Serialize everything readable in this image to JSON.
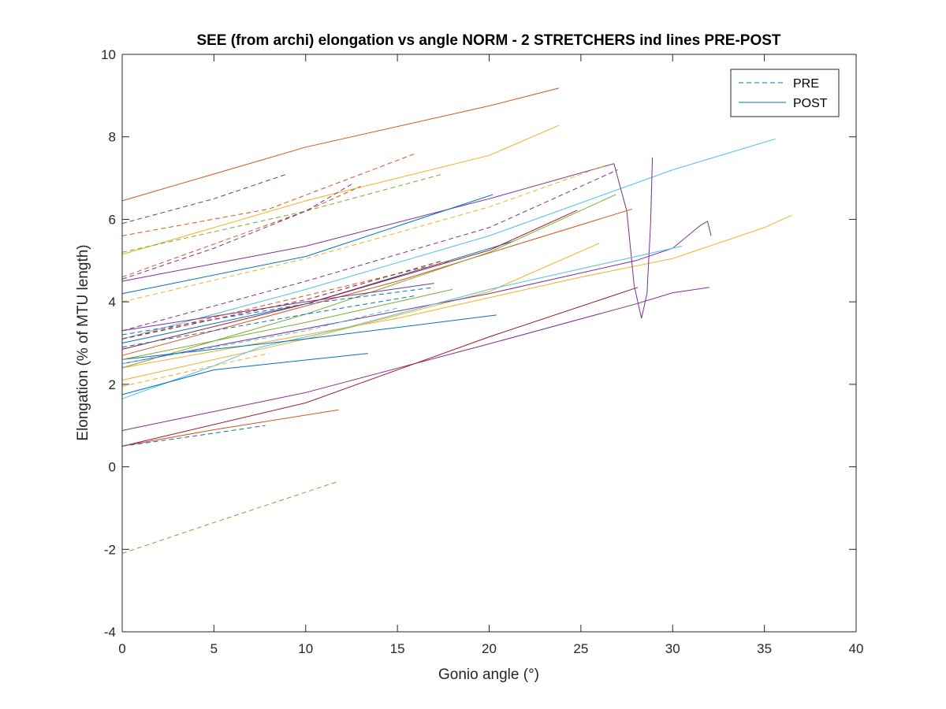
{
  "chart_data": {
    "type": "line",
    "title": "SEE (from archi) elongation vs angle NORM - 2 STRETCHERS ind lines PRE-POST",
    "xlabel": "Gonio angle (°)",
    "ylabel": "Elongation (% of MTU length)",
    "xlim": [
      0,
      40
    ],
    "ylim": [
      -4,
      10
    ],
    "xticks": [
      "0",
      "5",
      "10",
      "15",
      "20",
      "25",
      "30",
      "35",
      "40"
    ],
    "yticks": [
      "-4",
      "-2",
      "0",
      "2",
      "4",
      "6",
      "8",
      "10"
    ],
    "grid": false,
    "legend": {
      "placement": "top-right",
      "entries": [
        {
          "name": "PRE",
          "style": "dashed",
          "color": "#0072BD"
        },
        {
          "name": "POST",
          "style": "solid",
          "color": "#0072BD"
        }
      ]
    },
    "series": [
      {
        "style": "solid",
        "color": "#D95319",
        "points": [
          [
            0,
            6.45
          ],
          [
            10,
            7.75
          ],
          [
            20,
            8.75
          ],
          [
            23.8,
            9.18
          ]
        ]
      },
      {
        "style": "solid",
        "color": "#EDB120",
        "points": [
          [
            0,
            5.15
          ],
          [
            10,
            6.45
          ],
          [
            20,
            7.55
          ],
          [
            23.8,
            8.28
          ]
        ]
      },
      {
        "style": "solid",
        "color": "#4DBEEE",
        "points": [
          [
            0,
            3.1
          ],
          [
            10,
            4.3
          ],
          [
            20,
            5.6
          ],
          [
            30,
            7.2
          ],
          [
            35.6,
            7.95
          ]
        ]
      },
      {
        "style": "solid",
        "color": "#EDB120",
        "points": [
          [
            0,
            2.4
          ],
          [
            15,
            3.6
          ],
          [
            25,
            4.6
          ],
          [
            30,
            5.05
          ],
          [
            35,
            5.8
          ],
          [
            36.5,
            6.1
          ]
        ]
      },
      {
        "style": "solid",
        "color": "#7E2F8E",
        "points": [
          [
            0,
            4.5
          ],
          [
            10,
            5.35
          ],
          [
            20,
            6.5
          ],
          [
            26.8,
            7.35
          ],
          [
            27.5,
            6.2
          ],
          [
            27.9,
            4.4
          ],
          [
            28.3,
            3.6
          ],
          [
            28.6,
            4.2
          ],
          [
            28.8,
            5.9
          ],
          [
            28.9,
            7.5
          ]
        ]
      },
      {
        "style": "solid",
        "color": "#0072BD",
        "points": [
          [
            0,
            4.2
          ],
          [
            10,
            5.1
          ],
          [
            20.2,
            6.6
          ]
        ]
      },
      {
        "style": "solid",
        "color": "#0072BD",
        "points": [
          [
            0,
            3.0
          ],
          [
            10,
            3.95
          ],
          [
            21.4,
            5.48
          ]
        ]
      },
      {
        "style": "solid",
        "color": "#A2142F",
        "points": [
          [
            0,
            2.85
          ],
          [
            10,
            3.95
          ],
          [
            20,
            5.25
          ],
          [
            24.8,
            6.22
          ]
        ]
      },
      {
        "style": "solid",
        "color": "#D95319",
        "points": [
          [
            0,
            2.7
          ],
          [
            15,
            4.5
          ],
          [
            27.8,
            6.25
          ]
        ]
      },
      {
        "style": "solid",
        "color": "#77AC30",
        "points": [
          [
            0,
            2.4
          ],
          [
            10,
            3.7
          ],
          [
            20,
            5.2
          ],
          [
            26.9,
            6.6
          ]
        ]
      },
      {
        "style": "solid",
        "color": "#EDB120",
        "points": [
          [
            0,
            2.1
          ],
          [
            10,
            3.1
          ],
          [
            20,
            4.25
          ],
          [
            26,
            5.42
          ]
        ]
      },
      {
        "style": "solid",
        "color": "#7E2F8E",
        "points": [
          [
            0,
            2.5
          ],
          [
            10,
            3.35
          ],
          [
            20,
            4.2
          ],
          [
            28,
            5.0
          ],
          [
            30,
            5.3
          ],
          [
            31.5,
            5.85
          ],
          [
            31.9,
            5.95
          ],
          [
            32.1,
            5.6
          ]
        ]
      },
      {
        "style": "solid",
        "color": "#4DBEEE",
        "points": [
          [
            0,
            1.65
          ],
          [
            5,
            2.45
          ],
          [
            7.5,
            2.9
          ],
          [
            12,
            3.35
          ],
          [
            20,
            4.3
          ],
          [
            28,
            5.1
          ],
          [
            30.5,
            5.35
          ]
        ]
      },
      {
        "style": "solid",
        "color": "#0072BD",
        "points": [
          [
            0,
            1.75
          ],
          [
            5,
            2.35
          ],
          [
            13.4,
            2.75
          ]
        ]
      },
      {
        "style": "solid",
        "color": "#0072BD",
        "points": [
          [
            0,
            2.6
          ],
          [
            10,
            3.1
          ],
          [
            20.4,
            3.68
          ]
        ]
      },
      {
        "style": "solid",
        "color": "#7E2F8E",
        "points": [
          [
            0,
            0.88
          ],
          [
            10,
            1.8
          ],
          [
            20,
            2.98
          ],
          [
            28,
            3.95
          ],
          [
            30,
            4.22
          ],
          [
            32,
            4.35
          ]
        ]
      },
      {
        "style": "solid",
        "color": "#A2142F",
        "points": [
          [
            0,
            0.5
          ],
          [
            10,
            1.55
          ],
          [
            20,
            3.15
          ],
          [
            28.1,
            4.35
          ]
        ]
      },
      {
        "style": "solid",
        "color": "#D95319",
        "points": [
          [
            0,
            0.5
          ],
          [
            5,
            0.9
          ],
          [
            11.8,
            1.38
          ]
        ]
      },
      {
        "style": "solid",
        "color": "#7E2F8E",
        "points": [
          [
            0,
            3.3
          ],
          [
            10,
            4.0
          ],
          [
            17,
            4.45
          ]
        ]
      },
      {
        "style": "solid",
        "color": "#77AC30",
        "points": [
          [
            0,
            2.6
          ],
          [
            10,
            3.5
          ],
          [
            18,
            4.3
          ]
        ]
      },
      {
        "style": "dashed",
        "color": "#7E2F8E",
        "points": [
          [
            0,
            5.9
          ],
          [
            5,
            6.5
          ],
          [
            9.0,
            7.1
          ]
        ]
      },
      {
        "style": "dashed",
        "color": "#D95319",
        "points": [
          [
            0,
            5.6
          ],
          [
            8,
            6.25
          ],
          [
            16.0,
            7.6
          ]
        ]
      },
      {
        "style": "dashed",
        "color": "#77AC30",
        "points": [
          [
            0,
            5.2
          ],
          [
            10,
            6.2
          ],
          [
            17.5,
            7.1
          ]
        ]
      },
      {
        "style": "dashed",
        "color": "#D95319",
        "points": [
          [
            0,
            4.6
          ],
          [
            10,
            6.2
          ],
          [
            13,
            6.8
          ]
        ]
      },
      {
        "style": "dashed",
        "color": "#7E2F8E",
        "points": [
          [
            0,
            4.55
          ],
          [
            5,
            5.3
          ],
          [
            10,
            6.2
          ],
          [
            12.5,
            6.85
          ]
        ]
      },
      {
        "style": "dashed",
        "color": "#EDB120",
        "points": [
          [
            0,
            4.0
          ],
          [
            10,
            5.05
          ],
          [
            20,
            6.3
          ],
          [
            26.3,
            7.3
          ]
        ]
      },
      {
        "style": "dashed",
        "color": "#7E2F8E",
        "points": [
          [
            0,
            3.3
          ],
          [
            10,
            4.5
          ],
          [
            20,
            5.8
          ],
          [
            27,
            7.2
          ]
        ]
      },
      {
        "style": "dashed",
        "color": "#0072BD",
        "points": [
          [
            0,
            3.2
          ],
          [
            10,
            3.95
          ],
          [
            17,
            4.35
          ]
        ]
      },
      {
        "style": "dashed",
        "color": "#D95319",
        "points": [
          [
            0,
            3.1
          ],
          [
            10,
            4.15
          ],
          [
            18,
            5.0
          ]
        ]
      },
      {
        "style": "dashed",
        "color": "#0072BD",
        "points": [
          [
            0,
            2.9
          ],
          [
            10,
            3.7
          ],
          [
            16,
            4.15
          ]
        ]
      },
      {
        "style": "dashed",
        "color": "#A2142F",
        "points": [
          [
            0,
            3.1
          ],
          [
            10,
            4.05
          ],
          [
            17.5,
            5.0
          ]
        ]
      },
      {
        "style": "dashed",
        "color": "#4DBEEE",
        "points": [
          [
            0,
            2.5
          ],
          [
            10,
            3.3
          ],
          [
            15,
            3.85
          ]
        ]
      },
      {
        "style": "dashed",
        "color": "#EDB120",
        "points": [
          [
            0,
            1.95
          ],
          [
            4,
            2.35
          ],
          [
            8,
            2.75
          ]
        ]
      },
      {
        "style": "dashed",
        "color": "#0072BD",
        "points": [
          [
            0,
            0.5
          ],
          [
            4,
            0.75
          ],
          [
            7.8,
            1.0
          ]
        ]
      },
      {
        "style": "dashed",
        "color": "#77AC30",
        "points": [
          [
            0,
            -2.1
          ],
          [
            5,
            -1.35
          ],
          [
            11.8,
            -0.35
          ]
        ]
      }
    ]
  }
}
